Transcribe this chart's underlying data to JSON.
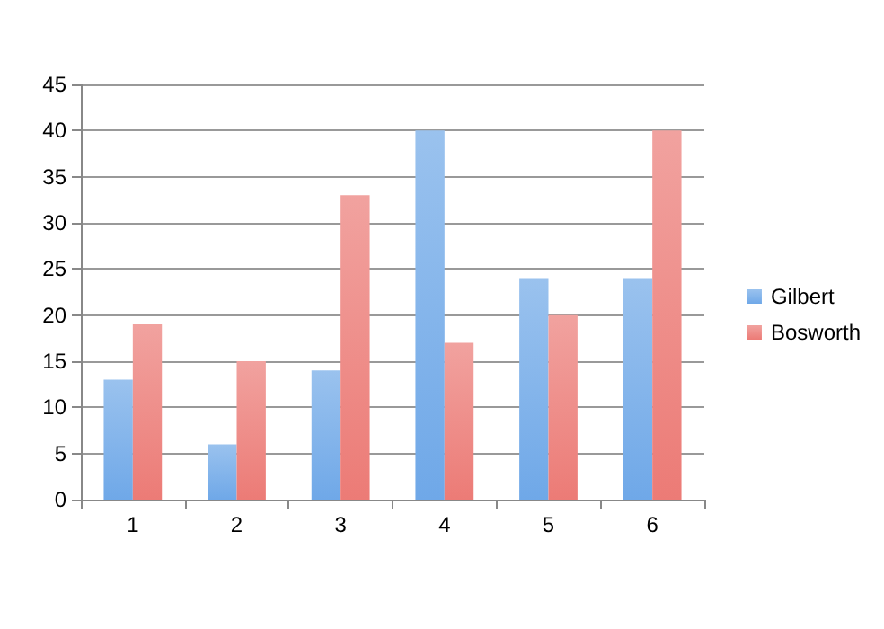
{
  "chart_data": {
    "type": "bar",
    "categories": [
      "1",
      "2",
      "3",
      "4",
      "5",
      "6"
    ],
    "series": [
      {
        "name": "Gilbert",
        "color": "#6fa8e8",
        "values": [
          13,
          6,
          14,
          40,
          24,
          24
        ]
      },
      {
        "name": "Bosworth",
        "color": "#ec7b76",
        "values": [
          19,
          15,
          33,
          17,
          20,
          40
        ]
      }
    ],
    "ylim": [
      0,
      45
    ],
    "yticks": [
      0,
      5,
      10,
      15,
      20,
      25,
      30,
      35,
      40,
      45
    ],
    "grid": "y",
    "legend": "right"
  }
}
